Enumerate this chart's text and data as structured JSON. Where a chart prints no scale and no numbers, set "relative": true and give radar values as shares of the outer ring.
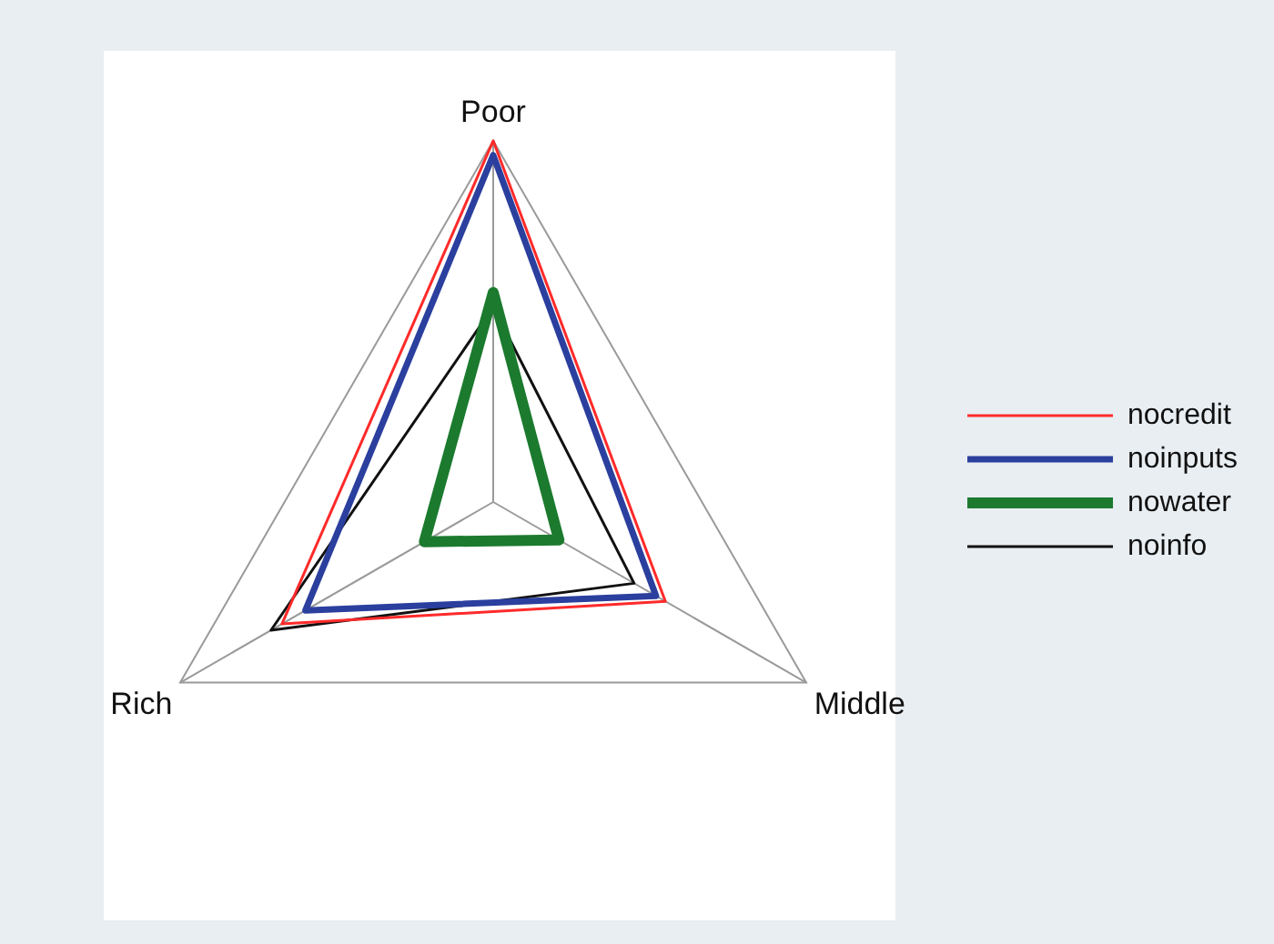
{
  "chart_data": {
    "type": "radar",
    "relative": true,
    "categories": [
      "Poor",
      "Middle",
      "Rich"
    ],
    "series": [
      {
        "name": "nocredit",
        "color": "#ff2a2a",
        "values": [
          1.0,
          0.55,
          0.675
        ]
      },
      {
        "name": "noinputs",
        "color": "#2b3f9e",
        "values": [
          0.96,
          0.52,
          0.6
        ]
      },
      {
        "name": "nowater",
        "color": "#1b7a2e",
        "values": [
          0.58,
          0.21,
          0.22
        ]
      },
      {
        "name": "noinfo",
        "color": "#111111",
        "values": [
          0.54,
          0.45,
          0.71
        ]
      }
    ],
    "legend": "right",
    "grid": true,
    "marker": "none"
  }
}
